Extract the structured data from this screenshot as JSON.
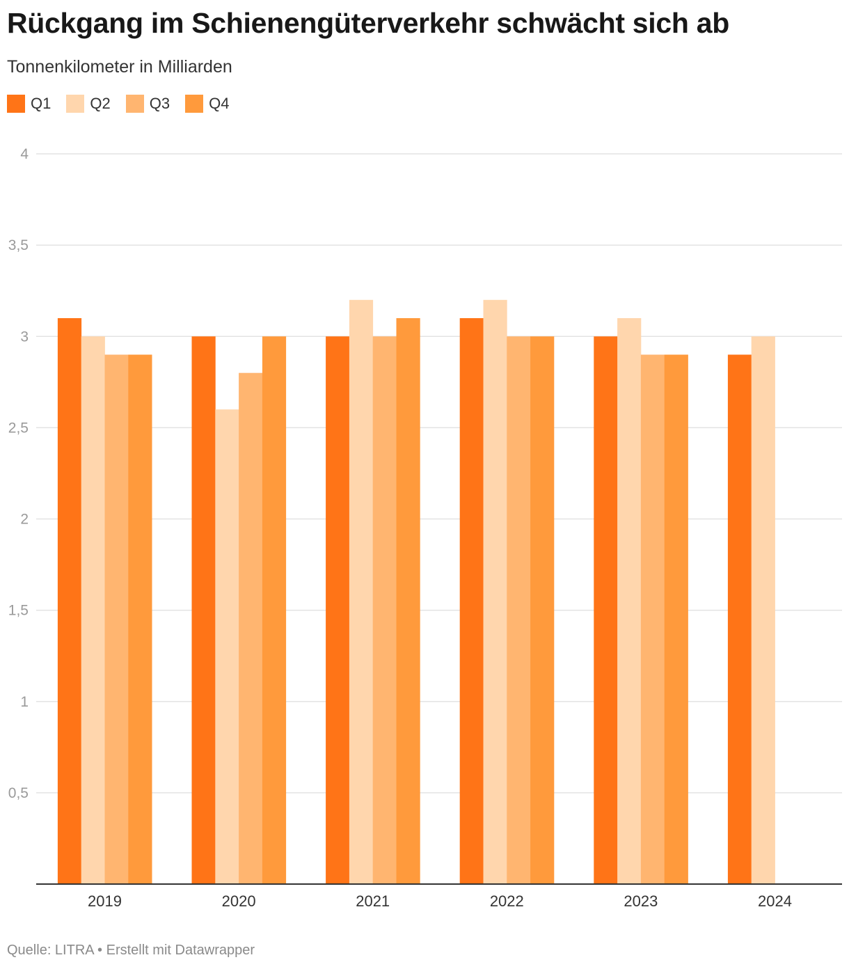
{
  "header": {
    "title": "Rückgang im Schienengüterverkehr schwächt sich ab",
    "subtitle": "Tonnenkilometer in Milliarden"
  },
  "footer": {
    "source": "Quelle: LITRA • Erstellt mit Datawrapper"
  },
  "chart_data": {
    "type": "bar",
    "title": "Rückgang im Schienengüterverkehr schwächt sich ab",
    "subtitle": "Tonnenkilometer in Milliarden",
    "categories": [
      "2019",
      "2020",
      "2021",
      "2022",
      "2023",
      "2024"
    ],
    "series": [
      {
        "name": "Q1",
        "color": "#ff7417",
        "values": [
          3.1,
          3.0,
          3.0,
          3.1,
          3.0,
          2.9
        ]
      },
      {
        "name": "Q2",
        "color": "#ffd6ad",
        "values": [
          3.0,
          2.6,
          3.2,
          3.2,
          3.1,
          3.0
        ]
      },
      {
        "name": "Q3",
        "color": "#ffb570",
        "values": [
          2.9,
          2.8,
          3.0,
          3.0,
          2.9,
          null
        ]
      },
      {
        "name": "Q4",
        "color": "#ff9a3c",
        "values": [
          2.9,
          3.0,
          3.1,
          3.0,
          2.9,
          null
        ]
      }
    ],
    "ylim": [
      0,
      4
    ],
    "yticks": [
      0.5,
      1,
      1.5,
      2,
      2.5,
      3,
      3.5,
      4
    ],
    "ytick_labels": [
      "0,5",
      "1",
      "1,5",
      "2",
      "2,5",
      "3",
      "3,5",
      "4"
    ],
    "grid": true,
    "legend_position": "top-left"
  }
}
